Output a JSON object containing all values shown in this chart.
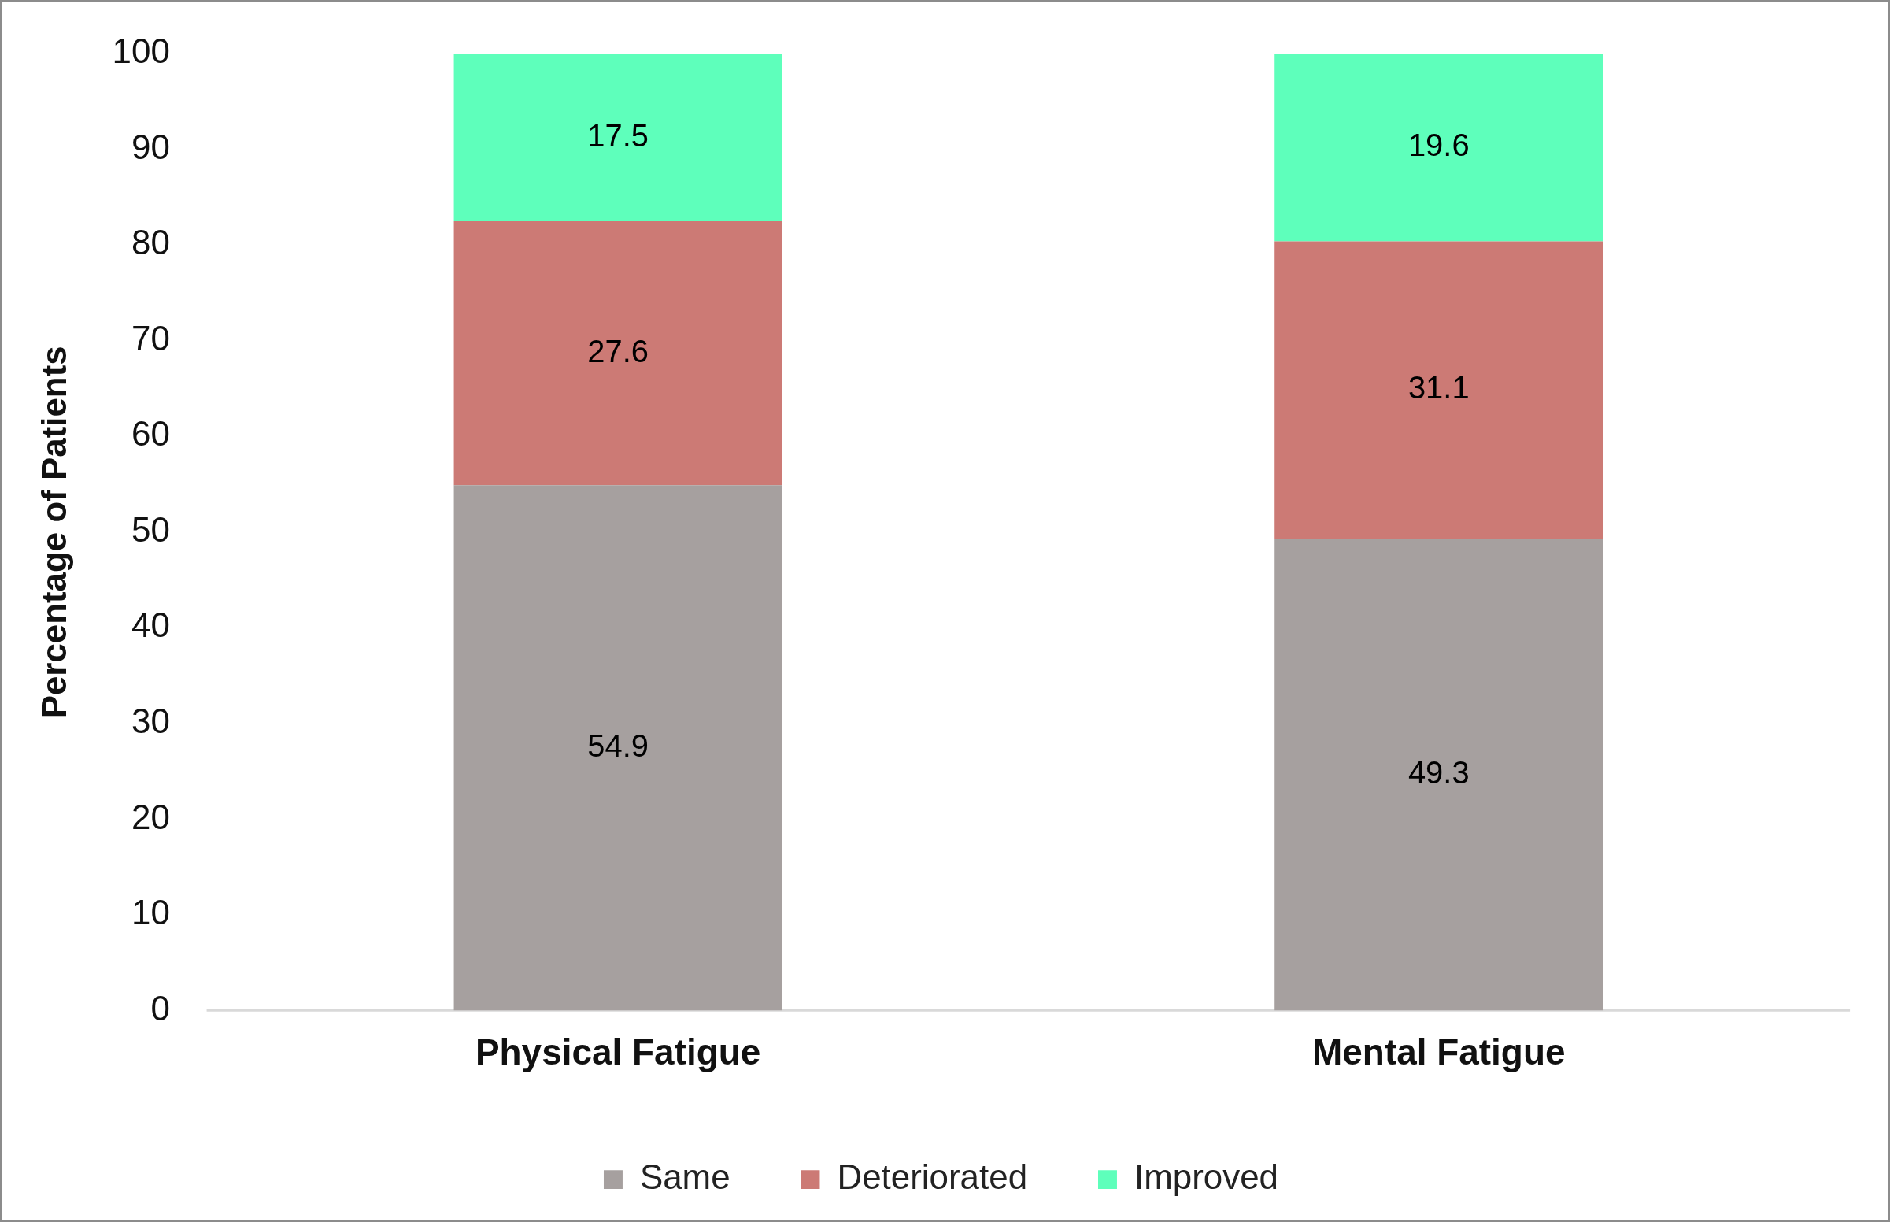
{
  "chart_data": {
    "type": "bar",
    "stacked": true,
    "ylabel": "Percentage of Patients",
    "categories": [
      "Physical Fatigue",
      "Mental Fatigue"
    ],
    "series": [
      {
        "name": "Same",
        "color": "#a6a09f",
        "values": [
          54.9,
          49.3
        ]
      },
      {
        "name": "Deteriorated",
        "color": "#cc7a75",
        "values": [
          27.6,
          31.1
        ]
      },
      {
        "name": "Improved",
        "color": "#5effbb",
        "values": [
          17.5,
          19.6
        ]
      }
    ],
    "ylim": [
      0,
      100
    ],
    "yticks": [
      0,
      10,
      20,
      30,
      40,
      50,
      60,
      70,
      80,
      90,
      100
    ],
    "grid": false,
    "legend": "bottom",
    "data_labels": true
  }
}
